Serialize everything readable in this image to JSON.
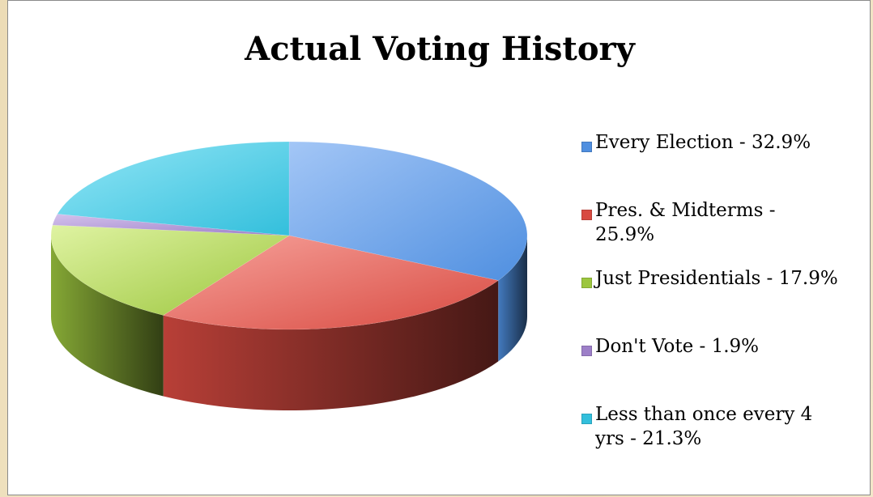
{
  "chart_data": {
    "type": "pie",
    "title": "Actual Voting History",
    "legend_position": "right",
    "three_d": true,
    "slices": [
      {
        "label": "Every Election - 32.9%",
        "value": 32.9,
        "color": "#4f8fe0",
        "light": "#a3c6f6"
      },
      {
        "label": "Pres. & Midterms - 25.9%",
        "value": 25.9,
        "color": "#d84a41",
        "light": "#f7a39c"
      },
      {
        "label": "Just Presidentials - 17.9%",
        "value": 17.9,
        "color": "#9cc63e",
        "light": "#dff3a2"
      },
      {
        "label": "Don't Vote - 1.9%",
        "value": 1.9,
        "color": "#9d7fc8",
        "light": "#d3c1ec"
      },
      {
        "label": "Less than once every 4 yrs - 21.3%",
        "value": 21.3,
        "color": "#33bfdc",
        "light": "#93e6f6"
      }
    ]
  }
}
